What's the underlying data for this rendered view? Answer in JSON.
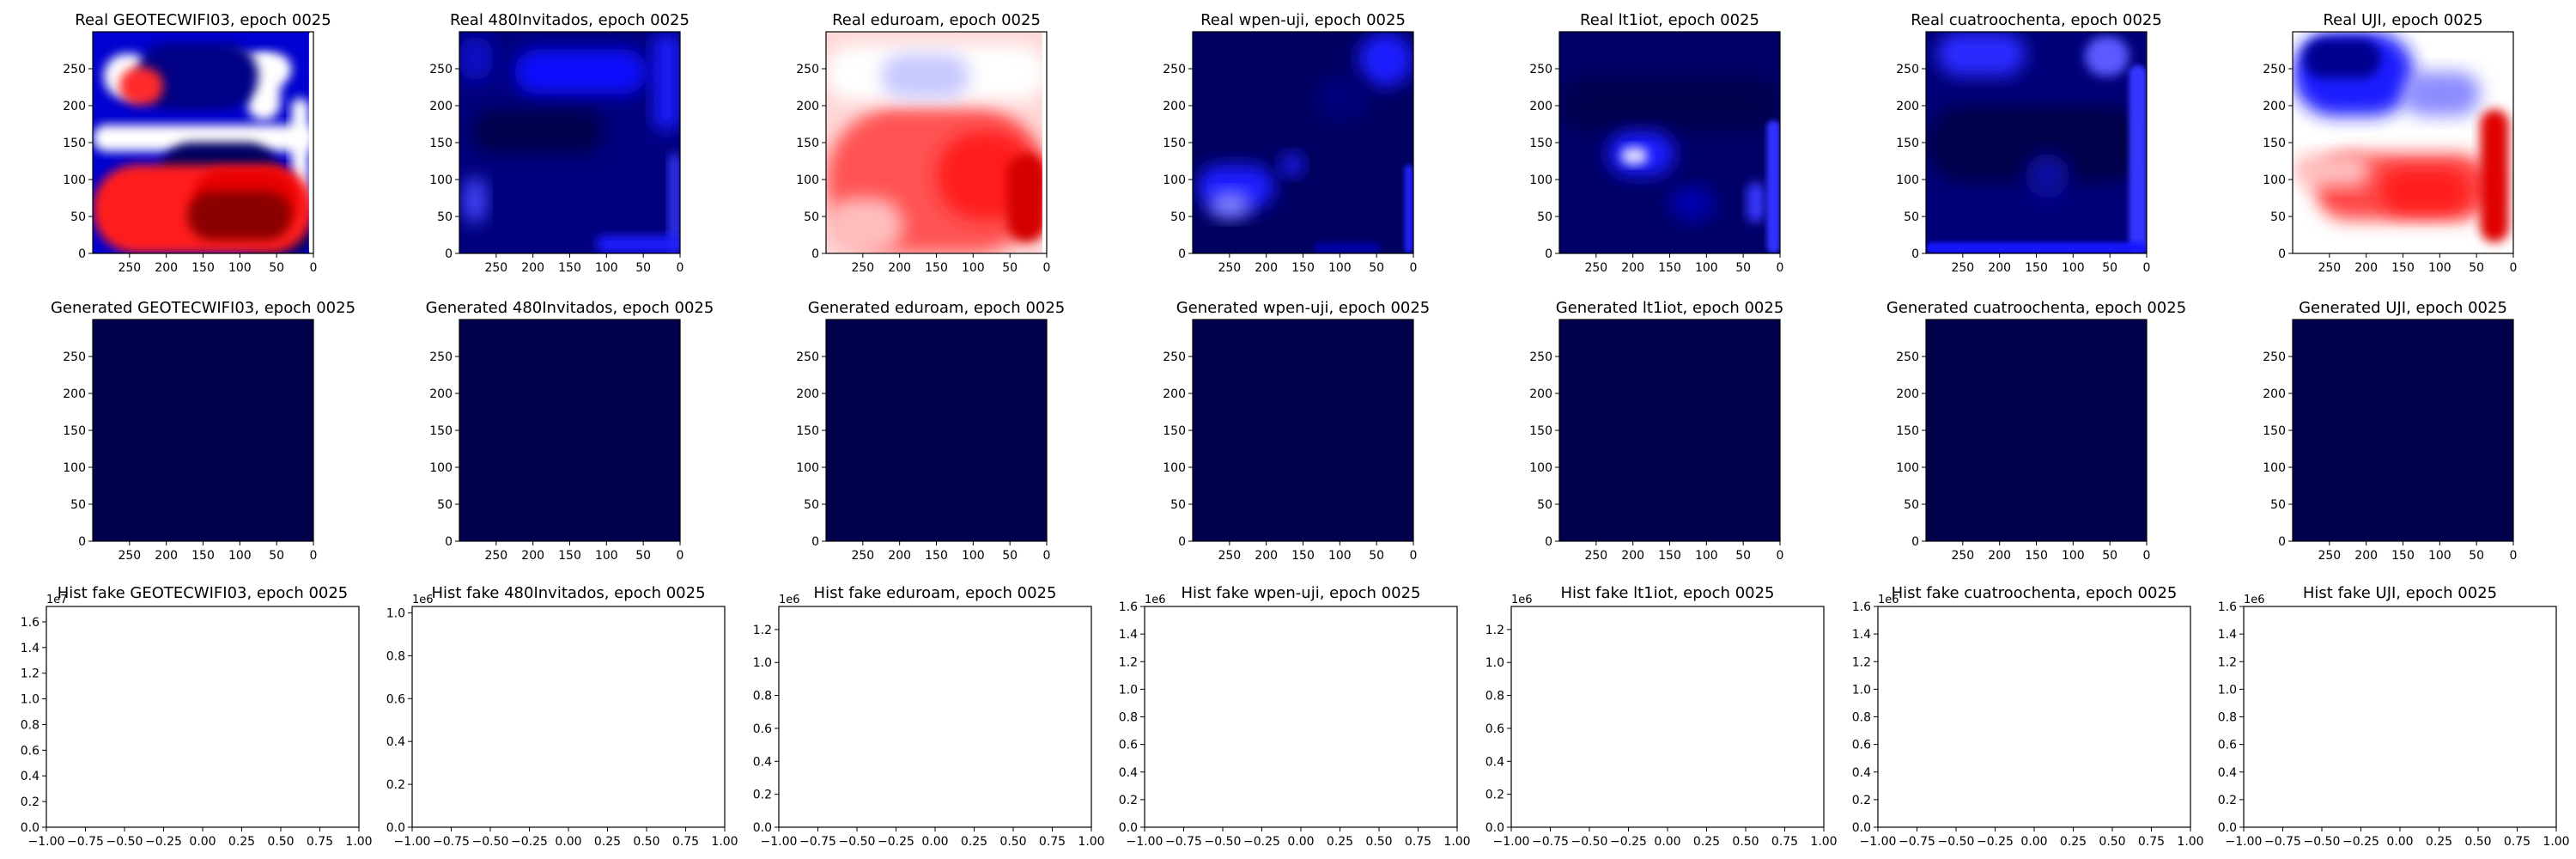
{
  "chart_data": [
    {
      "type": "heatmap",
      "title": "Real GEOTECWIFI03, epoch 0025",
      "xticks": [
        "250",
        "200",
        "150",
        "100",
        "50",
        "0"
      ],
      "yticks": [
        "0",
        "50",
        "100",
        "150",
        "200",
        "250"
      ],
      "xlim": [
        300,
        0
      ],
      "ylim": [
        0,
        300
      ],
      "colormap": "seismic",
      "pattern": "geo"
    },
    {
      "type": "heatmap",
      "title": "Real 480Invitados, epoch 0025",
      "xticks": [
        "250",
        "200",
        "150",
        "100",
        "50",
        "0"
      ],
      "yticks": [
        "0",
        "50",
        "100",
        "150",
        "200",
        "250"
      ],
      "xlim": [
        300,
        0
      ],
      "ylim": [
        0,
        300
      ],
      "colormap": "seismic",
      "pattern": "inv"
    },
    {
      "type": "heatmap",
      "title": "Real eduroam, epoch 0025",
      "xticks": [
        "250",
        "200",
        "150",
        "100",
        "50",
        "0"
      ],
      "yticks": [
        "0",
        "50",
        "100",
        "150",
        "200",
        "250"
      ],
      "xlim": [
        300,
        0
      ],
      "ylim": [
        0,
        300
      ],
      "colormap": "seismic",
      "pattern": "edu"
    },
    {
      "type": "heatmap",
      "title": "Real wpen-uji, epoch 0025",
      "xticks": [
        "250",
        "200",
        "150",
        "100",
        "50",
        "0"
      ],
      "yticks": [
        "0",
        "50",
        "100",
        "150",
        "200",
        "250"
      ],
      "xlim": [
        300,
        0
      ],
      "ylim": [
        0,
        300
      ],
      "colormap": "seismic",
      "pattern": "wpen"
    },
    {
      "type": "heatmap",
      "title": "Real lt1iot, epoch 0025",
      "xticks": [
        "250",
        "200",
        "150",
        "100",
        "50",
        "0"
      ],
      "yticks": [
        "0",
        "50",
        "100",
        "150",
        "200",
        "250"
      ],
      "xlim": [
        300,
        0
      ],
      "ylim": [
        0,
        300
      ],
      "colormap": "seismic",
      "pattern": "lt1"
    },
    {
      "type": "heatmap",
      "title": "Real cuatroochenta, epoch 0025",
      "xticks": [
        "250",
        "200",
        "150",
        "100",
        "50",
        "0"
      ],
      "yticks": [
        "0",
        "50",
        "100",
        "150",
        "200",
        "250"
      ],
      "xlim": [
        300,
        0
      ],
      "ylim": [
        0,
        300
      ],
      "colormap": "seismic",
      "pattern": "cua"
    },
    {
      "type": "heatmap",
      "title": "Real UJI, epoch 0025",
      "xticks": [
        "250",
        "200",
        "150",
        "100",
        "50",
        "0"
      ],
      "yticks": [
        "0",
        "50",
        "100",
        "150",
        "200",
        "250"
      ],
      "xlim": [
        300,
        0
      ],
      "ylim": [
        0,
        300
      ],
      "colormap": "seismic",
      "pattern": "uji"
    },
    {
      "type": "heatmap",
      "title": "Generated GEOTECWIFI03, epoch 0025",
      "xticks": [
        "250",
        "200",
        "150",
        "100",
        "50",
        "0"
      ],
      "yticks": [
        "0",
        "50",
        "100",
        "150",
        "200",
        "250"
      ],
      "xlim": [
        300,
        0
      ],
      "ylim": [
        0,
        300
      ],
      "colormap": "seismic",
      "fill": "#00004c"
    },
    {
      "type": "heatmap",
      "title": "Generated 480Invitados, epoch 0025",
      "xticks": [
        "250",
        "200",
        "150",
        "100",
        "50",
        "0"
      ],
      "yticks": [
        "0",
        "50",
        "100",
        "150",
        "200",
        "250"
      ],
      "xlim": [
        300,
        0
      ],
      "ylim": [
        0,
        300
      ],
      "colormap": "seismic",
      "fill": "#00004c"
    },
    {
      "type": "heatmap",
      "title": "Generated eduroam, epoch 0025",
      "xticks": [
        "250",
        "200",
        "150",
        "100",
        "50",
        "0"
      ],
      "yticks": [
        "0",
        "50",
        "100",
        "150",
        "200",
        "250"
      ],
      "xlim": [
        300,
        0
      ],
      "ylim": [
        0,
        300
      ],
      "colormap": "seismic",
      "fill": "#00004c"
    },
    {
      "type": "heatmap",
      "title": "Generated wpen-uji, epoch 0025",
      "xticks": [
        "250",
        "200",
        "150",
        "100",
        "50",
        "0"
      ],
      "yticks": [
        "0",
        "50",
        "100",
        "150",
        "200",
        "250"
      ],
      "xlim": [
        300,
        0
      ],
      "ylim": [
        0,
        300
      ],
      "colormap": "seismic",
      "fill": "#00004c"
    },
    {
      "type": "heatmap",
      "title": "Generated lt1iot, epoch 0025",
      "xticks": [
        "250",
        "200",
        "150",
        "100",
        "50",
        "0"
      ],
      "yticks": [
        "0",
        "50",
        "100",
        "150",
        "200",
        "250"
      ],
      "xlim": [
        300,
        0
      ],
      "ylim": [
        0,
        300
      ],
      "colormap": "seismic",
      "fill": "#00004c"
    },
    {
      "type": "heatmap",
      "title": "Generated cuatroochenta, epoch 0025",
      "xticks": [
        "250",
        "200",
        "150",
        "100",
        "50",
        "0"
      ],
      "yticks": [
        "0",
        "50",
        "100",
        "150",
        "200",
        "250"
      ],
      "xlim": [
        300,
        0
      ],
      "ylim": [
        0,
        300
      ],
      "colormap": "seismic",
      "fill": "#00004c"
    },
    {
      "type": "heatmap",
      "title": "Generated UJI, epoch 0025",
      "xticks": [
        "250",
        "200",
        "150",
        "100",
        "50",
        "0"
      ],
      "yticks": [
        "0",
        "50",
        "100",
        "150",
        "200",
        "250"
      ],
      "xlim": [
        300,
        0
      ],
      "ylim": [
        0,
        300
      ],
      "colormap": "seismic",
      "fill": "#00004c"
    },
    {
      "type": "bar",
      "title": "Hist fake GEOTECWIFI03, epoch 0025",
      "offset": "1e7",
      "xticks": [
        "−1.00",
        "−0.75",
        "−0.50",
        "−0.25",
        "0.00",
        "0.25",
        "0.50",
        "0.75",
        "1.00"
      ],
      "yticks": [
        "0.0",
        "0.2",
        "0.4",
        "0.6",
        "0.8",
        "1.0",
        "1.2",
        "1.4",
        "1.6"
      ],
      "xlim": [
        -1,
        1
      ],
      "ylim": [
        0,
        1.72
      ],
      "values": []
    },
    {
      "type": "bar",
      "title": "Hist fake 480Invitados, epoch 0025",
      "offset": "1e6",
      "xticks": [
        "−1.00",
        "−0.75",
        "−0.50",
        "−0.25",
        "0.00",
        "0.25",
        "0.50",
        "0.75",
        "1.00"
      ],
      "yticks": [
        "0.0",
        "0.2",
        "0.4",
        "0.6",
        "0.8",
        "1.0"
      ],
      "xlim": [
        -1,
        1
      ],
      "ylim": [
        0,
        1.03
      ],
      "values": []
    },
    {
      "type": "bar",
      "title": "Hist fake eduroam, epoch 0025",
      "offset": "1e6",
      "xticks": [
        "−1.00",
        "−0.75",
        "−0.50",
        "−0.25",
        "0.00",
        "0.25",
        "0.50",
        "0.75",
        "1.00"
      ],
      "yticks": [
        "0.0",
        "0.2",
        "0.4",
        "0.6",
        "0.8",
        "1.0",
        "1.2"
      ],
      "xlim": [
        -1,
        1
      ],
      "ylim": [
        0,
        1.34
      ],
      "values": []
    },
    {
      "type": "bar",
      "title": "Hist fake wpen-uji, epoch 0025",
      "offset": "1e6",
      "xticks": [
        "−1.00",
        "−0.75",
        "−0.50",
        "−0.25",
        "0.00",
        "0.25",
        "0.50",
        "0.75",
        "1.00"
      ],
      "yticks": [
        "0.0",
        "0.2",
        "0.4",
        "0.6",
        "0.8",
        "1.0",
        "1.2",
        "1.4",
        "1.6"
      ],
      "xlim": [
        -1,
        1
      ],
      "ylim": [
        0,
        1.6
      ],
      "values": []
    },
    {
      "type": "bar",
      "title": "Hist fake lt1iot, epoch 0025",
      "offset": "1e6",
      "xticks": [
        "−1.00",
        "−0.75",
        "−0.50",
        "−0.25",
        "0.00",
        "0.25",
        "0.50",
        "0.75",
        "1.00"
      ],
      "yticks": [
        "0.0",
        "0.2",
        "0.4",
        "0.6",
        "0.8",
        "1.0",
        "1.2"
      ],
      "xlim": [
        -1,
        1
      ],
      "ylim": [
        0,
        1.34
      ],
      "values": []
    },
    {
      "type": "bar",
      "title": "Hist fake cuatroochenta, epoch 0025",
      "offset": "1e6",
      "xticks": [
        "−1.00",
        "−0.75",
        "−0.50",
        "−0.25",
        "0.00",
        "0.25",
        "0.50",
        "0.75",
        "1.00"
      ],
      "yticks": [
        "0.0",
        "0.2",
        "0.4",
        "0.6",
        "0.8",
        "1.0",
        "1.2",
        "1.4",
        "1.6"
      ],
      "xlim": [
        -1,
        1
      ],
      "ylim": [
        0,
        1.6
      ],
      "values": []
    },
    {
      "type": "bar",
      "title": "Hist fake UJI, epoch 0025",
      "offset": "1e6",
      "xticks": [
        "−1.00",
        "−0.75",
        "−0.50",
        "−0.25",
        "0.00",
        "0.25",
        "0.50",
        "0.75",
        "1.00"
      ],
      "yticks": [
        "0.0",
        "0.2",
        "0.4",
        "0.6",
        "0.8",
        "1.0",
        "1.2",
        "1.4",
        "1.6"
      ],
      "xlim": [
        -1,
        1
      ],
      "ylim": [
        0,
        1.6
      ],
      "values": []
    }
  ]
}
